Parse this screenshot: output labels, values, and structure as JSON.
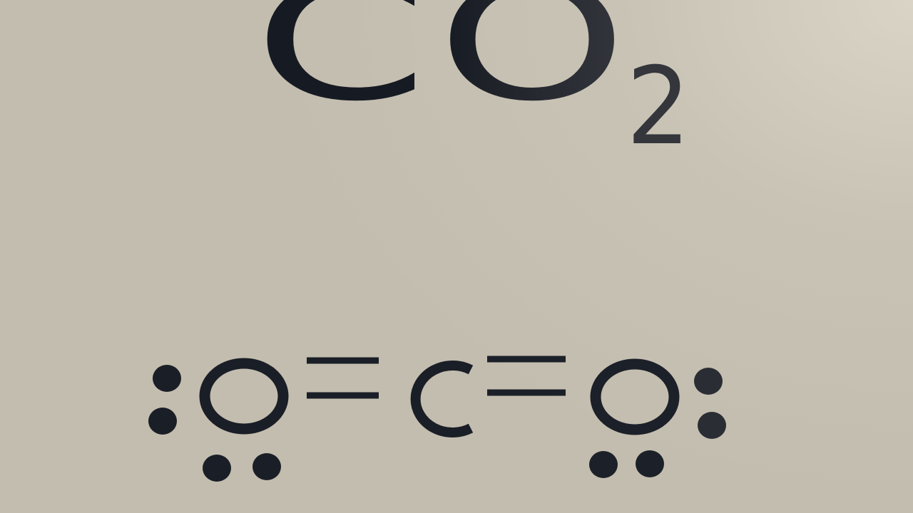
{
  "formula": {
    "element_c": "C",
    "element_o": "O",
    "subscript": "2"
  },
  "lewis_structure": {
    "left_atom": "O",
    "center_atom": "C",
    "right_atom": "O",
    "bond_type": "double",
    "lone_pairs_per_oxygen": 2
  },
  "colors": {
    "ink": "#1a1e26",
    "ink_light": "#30333b",
    "background": "#c6c0b2"
  }
}
